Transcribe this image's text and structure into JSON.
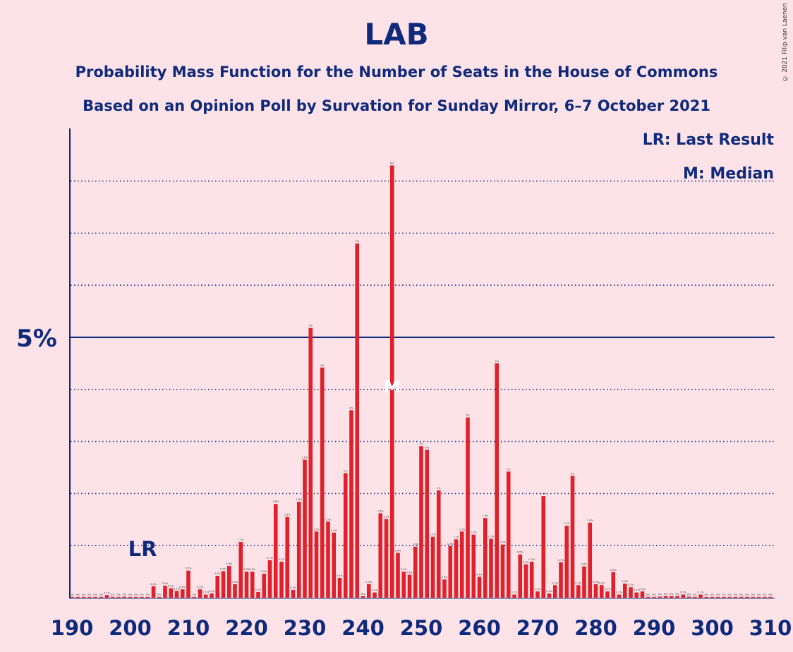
{
  "title": "LAB",
  "subtitle": "Probability Mass Function for the Number of Seats in the House of Commons",
  "subtitle2": "Based on an Opinion Poll by Survation for Sunday Mirror, 6–7 October 2021",
  "copyright": "© 2021 Filip van Laenen",
  "legend": {
    "last_result": "LR: Last Result",
    "median": "M: Median"
  },
  "colors": {
    "background": "#fde3e8",
    "bar": "#e0202a",
    "axis": "#0f2a7c"
  },
  "chart_data": {
    "type": "bar",
    "x": [
      190,
      191,
      192,
      193,
      194,
      195,
      196,
      197,
      198,
      199,
      200,
      201,
      202,
      203,
      204,
      205,
      206,
      207,
      208,
      209,
      210,
      211,
      212,
      213,
      214,
      215,
      216,
      217,
      218,
      219,
      220,
      221,
      222,
      223,
      224,
      225,
      226,
      227,
      228,
      229,
      230,
      231,
      232,
      233,
      234,
      235,
      236,
      237,
      238,
      239,
      240,
      241,
      242,
      243,
      244,
      245,
      246,
      247,
      248,
      249,
      250,
      251,
      252,
      253,
      254,
      255,
      256,
      257,
      258,
      259,
      260,
      261,
      262,
      263,
      264,
      265,
      266,
      267,
      268,
      269,
      270,
      271,
      272,
      273,
      274,
      275,
      276,
      277,
      278,
      279,
      280,
      281,
      282,
      283,
      284,
      285,
      286,
      287,
      288,
      289,
      290,
      291,
      292,
      293,
      294,
      295,
      296,
      297,
      298,
      299,
      300,
      301,
      302,
      303,
      304,
      305,
      306,
      307,
      308,
      309,
      310
    ],
    "values": [
      0,
      0,
      0,
      0,
      0,
      0,
      0.05,
      0,
      0,
      0.02,
      0,
      0,
      0,
      0,
      0.22,
      0,
      0.23,
      0.18,
      0.13,
      0.16,
      0.52,
      0,
      0.16,
      0.06,
      0.08,
      0.42,
      0.51,
      0.61,
      0.26,
      1.07,
      0.5,
      0.5,
      0.11,
      0.46,
      0.72,
      1.8,
      0.69,
      1.55,
      0.15,
      1.84,
      2.65,
      5.18,
      1.27,
      4.42,
      1.46,
      1.25,
      0.38,
      2.39,
      3.6,
      6.8,
      0.03,
      0.26,
      0.1,
      1.62,
      1.51,
      8.3,
      0.86,
      0.5,
      0.44,
      0.98,
      2.91,
      2.84,
      1.17,
      2.06,
      0.35,
      0.99,
      1.12,
      1.27,
      3.46,
      1.21,
      0.4,
      1.53,
      1.13,
      4.5,
      1.02,
      2.42,
      0.06,
      0.83,
      0.64,
      0.69,
      0.12,
      1.95,
      0.08,
      0.24,
      0.68,
      1.38,
      2.34,
      0.24,
      0.6,
      1.44,
      0.26,
      0.24,
      0.12,
      0.49,
      0.06,
      0.27,
      0.2,
      0.1,
      0.12,
      0,
      0,
      0.02,
      0.03,
      0.03,
      0.03,
      0.06,
      0.02,
      0,
      0.06,
      0,
      0,
      0,
      0,
      0,
      0,
      0,
      0,
      0,
      0,
      0,
      0
    ],
    "bar_labels": [
      "0%",
      "0%",
      "0%",
      "0%",
      "0%",
      "0%",
      "0.1%",
      "0%",
      "0%",
      "0%",
      "0%",
      "0%",
      "0%",
      "0%",
      "0.2%",
      "0%",
      "0.2%",
      "0.2%",
      "0.1%",
      "0.2%",
      "0.5%",
      "0%",
      "0.2%",
      "0.1%",
      "0.1%",
      "0.4%",
      "0.5%",
      "0.6%",
      "0.3%",
      "1.1%",
      "0.5%",
      "0.5%",
      "0.1%",
      "0.5%",
      "0.7%",
      "1.8%",
      "0.7%",
      "1.6%",
      "0.2%",
      "1.8%",
      "2.6%",
      "5%",
      "1.3%",
      "4%",
      "1.5%",
      "1.3%",
      "0.4%",
      "2%",
      "4%",
      "7%",
      "0%",
      "0.3%",
      "0.1%",
      "1.6%",
      "1.5%",
      "8%",
      "0.9%",
      "0.5%",
      "0.4%",
      "1.0%",
      "3%",
      "3%",
      "1.2%",
      "2%",
      "0.4%",
      "1.0%",
      "1.1%",
      "1.3%",
      "3%",
      "1.2%",
      "0.4%",
      "1.5%",
      "1.1%",
      "4%",
      "1.0%",
      "2%",
      "0.1%",
      "0.8%",
      "0.6%",
      "0.7%",
      "0.1%",
      "1.9%",
      "0.1%",
      "0.2%",
      "0.7%",
      "1.4%",
      "2%",
      "0.2%",
      "0.6%",
      "1.4%",
      "0.3%",
      "0.2%",
      "0.1%",
      "0.5%",
      "0.1%",
      "0.3%",
      "0.2%",
      "0.1%",
      "0.1%",
      "0%",
      "0%",
      "0%",
      "0%",
      "0%",
      "0%",
      "0.1%",
      "0%",
      "0%",
      "0.1%",
      "0%",
      "0%",
      "0%",
      "0%",
      "0%",
      "0%",
      "0%",
      "0%",
      "0%",
      "0%",
      "0%",
      "0%"
    ],
    "x_ticks": [
      190,
      200,
      210,
      220,
      230,
      240,
      250,
      260,
      270,
      280,
      290,
      300,
      310
    ],
    "y_tick_label": "5%",
    "y_tick_value": 5,
    "gridlines": [
      1,
      2,
      3,
      4,
      6,
      7,
      8
    ],
    "ylim": [
      0,
      9
    ],
    "last_result_seat": 202,
    "last_result_label": "LR",
    "median_seat": 245,
    "median_marker": "M",
    "xlabel": "",
    "ylabel": ""
  }
}
